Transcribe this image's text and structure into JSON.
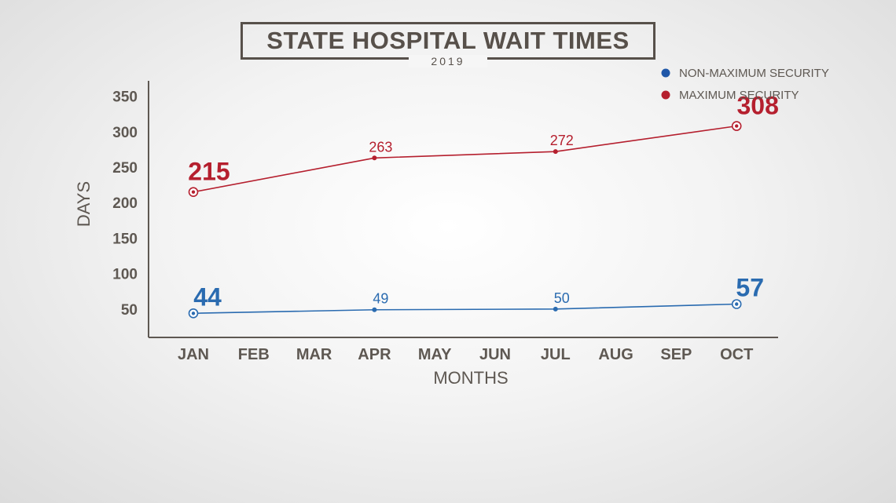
{
  "title": "STATE HOSPITAL WAIT TIMES",
  "subtitle": "2019",
  "colors": {
    "non_max": "#2a6bb0",
    "non_max_legend": "#1f57a8",
    "max": "#b51f2e",
    "axis": "#5e5852"
  },
  "chart_data": {
    "type": "line",
    "xlabel": "MONTHS",
    "ylabel": "DAYS",
    "categories": [
      "JAN",
      "FEB",
      "MAR",
      "APR",
      "MAY",
      "JUN",
      "JUL",
      "AUG",
      "SEP",
      "OCT"
    ],
    "y_ticks": [
      50,
      100,
      150,
      200,
      250,
      300,
      350
    ],
    "ylim": [
      10,
      385
    ],
    "grid": false,
    "legend_position": "top-right",
    "series": [
      {
        "name": "NON-MAXIMUM SECURITY",
        "points": [
          {
            "x": "JAN",
            "y": 44,
            "label": "44",
            "emphasis": true
          },
          {
            "x": "APR",
            "y": 49,
            "label": "49",
            "emphasis": false
          },
          {
            "x": "JUL",
            "y": 50,
            "label": "50",
            "emphasis": false
          },
          {
            "x": "OCT",
            "y": 57,
            "label": "57",
            "emphasis": true
          }
        ]
      },
      {
        "name": "MAXIMUM SECURITY",
        "points": [
          {
            "x": "JAN",
            "y": 215,
            "label": "215",
            "emphasis": true
          },
          {
            "x": "APR",
            "y": 263,
            "label": "263",
            "emphasis": false
          },
          {
            "x": "JUL",
            "y": 272,
            "label": "272",
            "emphasis": false
          },
          {
            "x": "OCT",
            "y": 308,
            "label": "308",
            "emphasis": true
          }
        ]
      }
    ]
  }
}
